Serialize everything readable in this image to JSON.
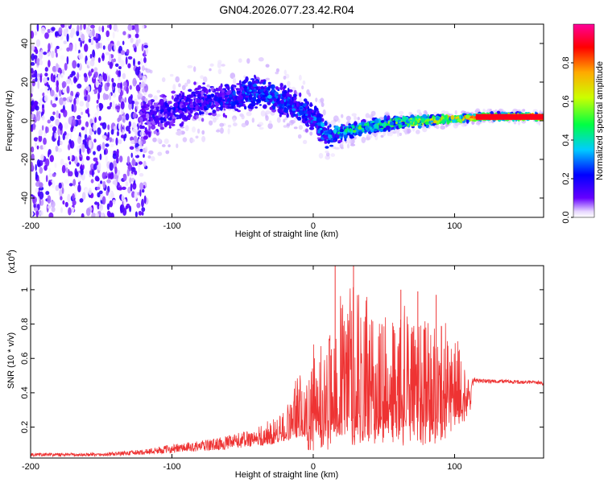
{
  "title": "GN04.2026.077.23.42.R04",
  "chart_data": [
    {
      "type": "heatmap",
      "name": "spectrogram",
      "xlabel": "Height of straight line (km)",
      "ylabel": "Frequency (Hz)",
      "xlim": [
        -200,
        163
      ],
      "ylim": [
        -50,
        50
      ],
      "xticks": [
        {
          "value": -200,
          "label": "-200"
        },
        {
          "value": -100,
          "label": "-100"
        },
        {
          "value": 0,
          "label": "0"
        },
        {
          "value": 100,
          "label": "100"
        }
      ],
      "yticks": [
        {
          "value": -40,
          "label": "-40"
        },
        {
          "value": -20,
          "label": "-20"
        },
        {
          "value": 0,
          "label": "0"
        },
        {
          "value": 20,
          "label": "20"
        },
        {
          "value": 40,
          "label": "40"
        }
      ],
      "ridge": {
        "x": [
          -120,
          -100,
          -80,
          -60,
          -40,
          -20,
          0,
          10,
          20,
          40,
          60,
          80,
          100,
          120,
          163
        ],
        "center": [
          2,
          5,
          10,
          12,
          15,
          10,
          2,
          -8,
          -6,
          -3,
          -1,
          0,
          1,
          2,
          2
        ],
        "halfwidth": [
          15,
          12,
          12,
          11,
          11,
          10,
          10,
          8,
          5,
          4,
          4,
          3,
          2,
          2,
          2
        ],
        "amplitude": [
          0.15,
          0.2,
          0.22,
          0.25,
          0.3,
          0.28,
          0.3,
          0.35,
          0.4,
          0.5,
          0.55,
          0.65,
          0.8,
          0.9,
          0.92
        ]
      },
      "colorbar": {
        "label": "Normalized spectral amplitude",
        "range": [
          0,
          1
        ],
        "ticks": [
          {
            "value": 0.0,
            "label": "0.0"
          },
          {
            "value": 0.2,
            "label": "0.2"
          },
          {
            "value": 0.4,
            "label": "0.4"
          },
          {
            "value": 0.6,
            "label": "0.6"
          },
          {
            "value": 0.8,
            "label": "0.8"
          }
        ],
        "colors": [
          "#ffffff",
          "#6600ff",
          "#0000ff",
          "#00ccff",
          "#00ff44",
          "#ccff00",
          "#ffaa00",
          "#ff0000",
          "#ff0099"
        ]
      }
    },
    {
      "type": "line",
      "name": "snr",
      "xlabel": "Height of straight line (km)",
      "ylabel": "SNR (10 * v/v)",
      "yscale_label": "(x10^4)",
      "xlim": [
        -200,
        163
      ],
      "ylim": [
        0.02,
        1.14
      ],
      "line_color": "#ee3333",
      "xticks": [
        {
          "value": -200,
          "label": "-200"
        },
        {
          "value": -100,
          "label": "-100"
        },
        {
          "value": 0,
          "label": "0"
        },
        {
          "value": 100,
          "label": "100"
        }
      ],
      "yticks": [
        {
          "value": 0.2,
          "label": "0.2"
        },
        {
          "value": 0.4,
          "label": "0.4"
        },
        {
          "value": 0.6,
          "label": "0.6"
        },
        {
          "value": 0.8,
          "label": "0.8"
        },
        {
          "value": 1.0,
          "label": "1"
        }
      ],
      "envelope": {
        "x": [
          -200,
          -150,
          -120,
          -100,
          -80,
          -60,
          -40,
          -30,
          -20,
          -10,
          0,
          10,
          20,
          30,
          40,
          50,
          60,
          70,
          80,
          90,
          100,
          110,
          115,
          130,
          163
        ],
        "base": [
          0.03,
          0.03,
          0.04,
          0.05,
          0.06,
          0.07,
          0.09,
          0.1,
          0.12,
          0.14,
          0.16,
          0.18,
          0.2,
          0.2,
          0.2,
          0.2,
          0.2,
          0.2,
          0.2,
          0.2,
          0.25,
          0.38,
          0.45,
          0.45,
          0.44
        ],
        "peak": [
          0.05,
          0.05,
          0.07,
          0.1,
          0.12,
          0.15,
          0.2,
          0.25,
          0.3,
          0.55,
          0.7,
          0.8,
          1.05,
          1.14,
          0.95,
          0.9,
          0.98,
          0.95,
          1.0,
          0.9,
          0.85,
          0.55,
          0.5,
          0.49,
          0.48
        ]
      },
      "peaks": [
        {
          "x": 15.5,
          "y": 1.14
        },
        {
          "x": 28.5,
          "y": 1.14
        },
        {
          "x": 62,
          "y": 1.0
        },
        {
          "x": 74,
          "y": 0.99
        },
        {
          "x": 87,
          "y": 0.97
        }
      ]
    }
  ]
}
